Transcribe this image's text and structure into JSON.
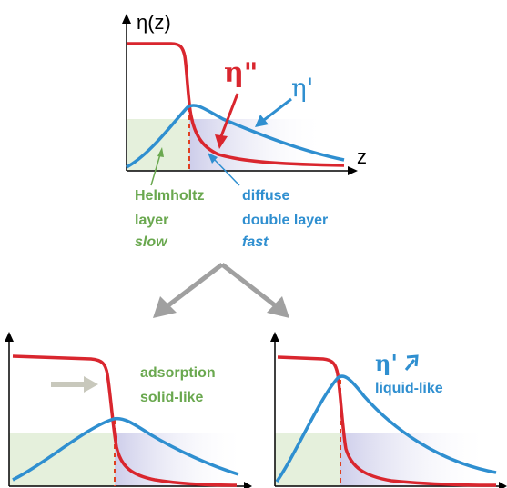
{
  "top": {
    "ylabel": "η(z)",
    "xlabel": "z",
    "eta_double_prime": "η\"",
    "eta_prime": "η'",
    "helmholtz": [
      "Helmholtz",
      "layer",
      "slow"
    ],
    "diffuse": [
      "diffuse",
      "double layer",
      "fast"
    ]
  },
  "bottom_left": {
    "label": [
      "adsorption",
      "solid-like"
    ]
  },
  "bottom_right": {
    "label_symbol": "η'",
    "label": "liquid-like"
  },
  "colors": {
    "red": "#d9262e",
    "blue": "#2f8fd0",
    "green": "#6aa84f",
    "helmholtz_fill": "#e5f0dc",
    "diffuse_fill": "#dcdcf0",
    "gray_arrow": "#a0a0a0"
  }
}
